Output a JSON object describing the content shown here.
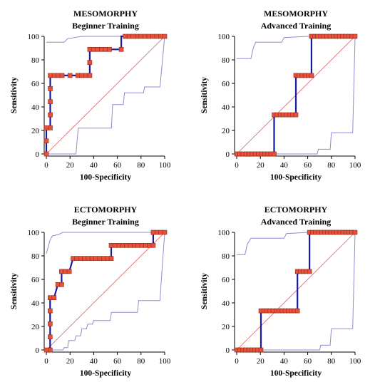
{
  "chart_data": [
    {
      "type": "line",
      "title": "MESOMORPHY",
      "subtitle": "Beginner Training",
      "xlabel": "100-Specificity",
      "ylabel": "Sensitivity",
      "xlim": [
        0,
        100
      ],
      "ylim": [
        0,
        100
      ],
      "xticks": [
        0,
        20,
        40,
        60,
        80,
        100
      ],
      "yticks": [
        0,
        20,
        40,
        60,
        80,
        100
      ],
      "grid": false,
      "colors": {
        "roc": "#1a1a9e",
        "marker": "#e8503a",
        "ci": "#8c8cd0",
        "diagonal": "#e05a5a"
      },
      "roc": [
        [
          0,
          0
        ],
        [
          0,
          11.1
        ],
        [
          0,
          22.2
        ],
        [
          3.3,
          22.2
        ],
        [
          3.3,
          33.3
        ],
        [
          3.3,
          44.4
        ],
        [
          3.3,
          55.6
        ],
        [
          3.3,
          66.7
        ],
        [
          6.7,
          66.7
        ],
        [
          10,
          66.7
        ],
        [
          13.3,
          66.7
        ],
        [
          20,
          66.7
        ],
        [
          26.7,
          66.7
        ],
        [
          30,
          66.7
        ],
        [
          33.3,
          66.7
        ],
        [
          36.7,
          66.7
        ],
        [
          36.7,
          77.8
        ],
        [
          36.7,
          88.9
        ],
        [
          40,
          88.9
        ],
        [
          43.3,
          88.9
        ],
        [
          46.7,
          88.9
        ],
        [
          50,
          88.9
        ],
        [
          53.3,
          88.9
        ],
        [
          63.3,
          88.9
        ],
        [
          63.3,
          100
        ],
        [
          66.7,
          100
        ],
        [
          70,
          100
        ],
        [
          73.3,
          100
        ],
        [
          76.7,
          100
        ],
        [
          80,
          100
        ],
        [
          83.3,
          100
        ],
        [
          86.7,
          100
        ],
        [
          90,
          100
        ],
        [
          93.3,
          100
        ],
        [
          96.7,
          100
        ],
        [
          100,
          100
        ]
      ],
      "markers": [
        [
          0,
          0
        ],
        [
          0,
          11.1
        ],
        [
          0,
          22.2
        ],
        [
          3.3,
          22.2
        ],
        [
          3.3,
          33.3
        ],
        [
          3.3,
          44.4
        ],
        [
          3.3,
          55.6
        ],
        [
          3.3,
          66.7
        ],
        [
          6.7,
          66.7
        ],
        [
          10,
          66.7
        ],
        [
          13.3,
          66.7
        ],
        [
          20,
          66.7
        ],
        [
          26.7,
          66.7
        ],
        [
          30,
          66.7
        ],
        [
          33.3,
          66.7
        ],
        [
          36.7,
          66.7
        ],
        [
          36.7,
          77.8
        ],
        [
          36.7,
          88.9
        ],
        [
          40,
          88.9
        ],
        [
          43.3,
          88.9
        ],
        [
          46.7,
          88.9
        ],
        [
          50,
          88.9
        ],
        [
          53.3,
          88.9
        ],
        [
          63.3,
          88.9
        ],
        [
          66.7,
          100
        ],
        [
          70,
          100
        ],
        [
          73.3,
          100
        ],
        [
          76.7,
          100
        ],
        [
          80,
          100
        ],
        [
          83.3,
          100
        ],
        [
          86.7,
          100
        ],
        [
          90,
          100
        ],
        [
          93.3,
          100
        ],
        [
          96.7,
          100
        ],
        [
          100,
          100
        ]
      ],
      "ci_upper": [
        [
          0,
          95
        ],
        [
          15,
          95
        ],
        [
          18,
          98
        ],
        [
          30,
          100
        ],
        [
          100,
          100
        ]
      ],
      "ci_lower": [
        [
          0,
          0
        ],
        [
          25,
          0
        ],
        [
          27,
          22
        ],
        [
          55,
          22
        ],
        [
          56,
          42
        ],
        [
          65,
          42
        ],
        [
          66,
          52
        ],
        [
          82,
          52
        ],
        [
          83,
          57
        ],
        [
          96,
          57
        ],
        [
          100,
          100
        ]
      ]
    },
    {
      "type": "line",
      "title": "MESOMORPHY",
      "subtitle": "Advanced Training",
      "xlabel": "100-Specificity",
      "ylabel": "Sensitivity",
      "xlim": [
        0,
        100
      ],
      "ylim": [
        0,
        100
      ],
      "xticks": [
        0,
        20,
        40,
        60,
        80,
        100
      ],
      "yticks": [
        0,
        20,
        40,
        60,
        80,
        100
      ],
      "grid": false,
      "colors": {
        "roc": "#1a1a9e",
        "marker": "#e8503a",
        "ci": "#8c8cd0",
        "diagonal": "#e05a5a"
      },
      "roc": [
        [
          0,
          0
        ],
        [
          31.6,
          0
        ],
        [
          31.6,
          33.3
        ],
        [
          50,
          33.3
        ],
        [
          50,
          66.7
        ],
        [
          63.2,
          66.7
        ],
        [
          63.2,
          100
        ],
        [
          100,
          100
        ]
      ],
      "markers": [
        [
          0,
          0
        ],
        [
          2.6,
          0
        ],
        [
          5.3,
          0
        ],
        [
          7.9,
          0
        ],
        [
          10.5,
          0
        ],
        [
          13.2,
          0
        ],
        [
          15.8,
          0
        ],
        [
          18.4,
          0
        ],
        [
          21.1,
          0
        ],
        [
          23.7,
          0
        ],
        [
          26.3,
          0
        ],
        [
          28.9,
          0
        ],
        [
          31.6,
          0
        ],
        [
          31.6,
          33.3
        ],
        [
          34.2,
          33.3
        ],
        [
          36.8,
          33.3
        ],
        [
          39.5,
          33.3
        ],
        [
          42.1,
          33.3
        ],
        [
          44.7,
          33.3
        ],
        [
          47.4,
          33.3
        ],
        [
          50,
          33.3
        ],
        [
          50,
          66.7
        ],
        [
          52.6,
          66.7
        ],
        [
          55.3,
          66.7
        ],
        [
          57.9,
          66.7
        ],
        [
          60.5,
          66.7
        ],
        [
          63.2,
          66.7
        ],
        [
          63.2,
          100
        ],
        [
          65.8,
          100
        ],
        [
          68.4,
          100
        ],
        [
          71.1,
          100
        ],
        [
          73.7,
          100
        ],
        [
          76.3,
          100
        ],
        [
          78.9,
          100
        ],
        [
          81.6,
          100
        ],
        [
          84.2,
          100
        ],
        [
          86.8,
          100
        ],
        [
          89.5,
          100
        ],
        [
          92.1,
          100
        ],
        [
          94.7,
          100
        ],
        [
          97.4,
          100
        ],
        [
          100,
          100
        ]
      ],
      "ci_upper": [
        [
          0,
          81
        ],
        [
          12,
          81
        ],
        [
          14,
          90
        ],
        [
          16,
          95
        ],
        [
          38,
          95
        ],
        [
          40,
          99
        ],
        [
          60,
          100
        ],
        [
          100,
          100
        ]
      ],
      "ci_lower": [
        [
          0,
          0
        ],
        [
          68,
          0
        ],
        [
          69,
          4
        ],
        [
          79,
          4
        ],
        [
          80,
          18
        ],
        [
          98,
          18
        ],
        [
          100,
          100
        ]
      ]
    },
    {
      "type": "line",
      "title": "ECTOMORPHY",
      "subtitle": "Beginner Training",
      "xlabel": "100-Specificity",
      "ylabel": "Sensitivity",
      "xlim": [
        0,
        100
      ],
      "ylim": [
        0,
        100
      ],
      "xticks": [
        0,
        20,
        40,
        60,
        80,
        100
      ],
      "yticks": [
        0,
        20,
        40,
        60,
        80,
        100
      ],
      "grid": false,
      "colors": {
        "roc": "#1a1a9e",
        "marker": "#e8503a",
        "ci": "#8c8cd0",
        "diagonal": "#e05a5a"
      },
      "roc": [
        [
          0,
          0
        ],
        [
          3.2,
          0
        ],
        [
          3.2,
          11.1
        ],
        [
          3.2,
          22.2
        ],
        [
          3.2,
          33.3
        ],
        [
          3.2,
          44.4
        ],
        [
          6.5,
          44.4
        ],
        [
          9.7,
          55.6
        ],
        [
          12.9,
          55.6
        ],
        [
          12.9,
          66.7
        ],
        [
          16.1,
          66.7
        ],
        [
          19.4,
          66.7
        ],
        [
          22.6,
          77.8
        ],
        [
          25.8,
          77.8
        ],
        [
          29,
          77.8
        ],
        [
          32.3,
          77.8
        ],
        [
          35.5,
          77.8
        ],
        [
          38.7,
          77.8
        ],
        [
          41.9,
          77.8
        ],
        [
          45.2,
          77.8
        ],
        [
          48.4,
          77.8
        ],
        [
          51.6,
          77.8
        ],
        [
          54.8,
          77.8
        ],
        [
          54.8,
          88.9
        ],
        [
          58.1,
          88.9
        ],
        [
          61.3,
          88.9
        ],
        [
          64.5,
          88.9
        ],
        [
          67.7,
          88.9
        ],
        [
          71,
          88.9
        ],
        [
          74.2,
          88.9
        ],
        [
          77.4,
          88.9
        ],
        [
          80.6,
          88.9
        ],
        [
          83.9,
          88.9
        ],
        [
          87.1,
          88.9
        ],
        [
          90.3,
          88.9
        ],
        [
          90.3,
          100
        ],
        [
          93.5,
          100
        ],
        [
          96.8,
          100
        ],
        [
          100,
          100
        ]
      ],
      "markers": [
        [
          0,
          0
        ],
        [
          3.2,
          0
        ],
        [
          3.2,
          11.1
        ],
        [
          3.2,
          22.2
        ],
        [
          3.2,
          33.3
        ],
        [
          3.2,
          44.4
        ],
        [
          6.5,
          44.4
        ],
        [
          9.7,
          55.6
        ],
        [
          12.9,
          55.6
        ],
        [
          12.9,
          66.7
        ],
        [
          16.1,
          66.7
        ],
        [
          19.4,
          66.7
        ],
        [
          22.6,
          77.8
        ],
        [
          25.8,
          77.8
        ],
        [
          29,
          77.8
        ],
        [
          32.3,
          77.8
        ],
        [
          35.5,
          77.8
        ],
        [
          38.7,
          77.8
        ],
        [
          41.9,
          77.8
        ],
        [
          45.2,
          77.8
        ],
        [
          48.4,
          77.8
        ],
        [
          51.6,
          77.8
        ],
        [
          54.8,
          77.8
        ],
        [
          54.8,
          88.9
        ],
        [
          58.1,
          88.9
        ],
        [
          61.3,
          88.9
        ],
        [
          64.5,
          88.9
        ],
        [
          67.7,
          88.9
        ],
        [
          71,
          88.9
        ],
        [
          74.2,
          88.9
        ],
        [
          77.4,
          88.9
        ],
        [
          80.6,
          88.9
        ],
        [
          83.9,
          88.9
        ],
        [
          87.1,
          88.9
        ],
        [
          90.3,
          88.9
        ],
        [
          90.3,
          100
        ],
        [
          93.5,
          100
        ],
        [
          96.8,
          100
        ],
        [
          100,
          100
        ]
      ],
      "ci_upper": [
        [
          0,
          82
        ],
        [
          3,
          93
        ],
        [
          5,
          97
        ],
        [
          10,
          98
        ],
        [
          14,
          100
        ],
        [
          100,
          100
        ]
      ],
      "ci_lower": [
        [
          0,
          0
        ],
        [
          14,
          0
        ],
        [
          15,
          2
        ],
        [
          18,
          2
        ],
        [
          19,
          8
        ],
        [
          24,
          8
        ],
        [
          25,
          12
        ],
        [
          29,
          12
        ],
        [
          30,
          18
        ],
        [
          34,
          18
        ],
        [
          35,
          22
        ],
        [
          39,
          22
        ],
        [
          40,
          25
        ],
        [
          54,
          25
        ],
        [
          55,
          32
        ],
        [
          77,
          32
        ],
        [
          78,
          42
        ],
        [
          96,
          42
        ],
        [
          97,
          57
        ],
        [
          100,
          100
        ]
      ]
    },
    {
      "type": "line",
      "title": "ECTOMORPHY",
      "subtitle": "Advanced Training",
      "xlabel": "100-Specificity",
      "ylabel": "Sensitivity",
      "xlim": [
        0,
        100
      ],
      "ylim": [
        0,
        100
      ],
      "xticks": [
        0,
        20,
        40,
        60,
        80,
        100
      ],
      "yticks": [
        0,
        20,
        40,
        60,
        80,
        100
      ],
      "grid": false,
      "colors": {
        "roc": "#1a1a9e",
        "marker": "#e8503a",
        "ci": "#8c8cd0",
        "diagonal": "#e05a5a"
      },
      "roc": [
        [
          0,
          0
        ],
        [
          20.5,
          0
        ],
        [
          20.5,
          33.3
        ],
        [
          51.3,
          33.3
        ],
        [
          51.3,
          66.7
        ],
        [
          61.5,
          66.7
        ],
        [
          61.5,
          100
        ],
        [
          100,
          100
        ]
      ],
      "markers": [
        [
          0,
          0
        ],
        [
          2.6,
          0
        ],
        [
          5.1,
          0
        ],
        [
          7.7,
          0
        ],
        [
          10.3,
          0
        ],
        [
          12.8,
          0
        ],
        [
          15.4,
          0
        ],
        [
          17.9,
          0
        ],
        [
          20.5,
          0
        ],
        [
          20.5,
          33.3
        ],
        [
          23.1,
          33.3
        ],
        [
          25.6,
          33.3
        ],
        [
          28.2,
          33.3
        ],
        [
          30.8,
          33.3
        ],
        [
          33.3,
          33.3
        ],
        [
          35.9,
          33.3
        ],
        [
          38.5,
          33.3
        ],
        [
          41,
          33.3
        ],
        [
          43.6,
          33.3
        ],
        [
          46.2,
          33.3
        ],
        [
          48.7,
          33.3
        ],
        [
          51.3,
          33.3
        ],
        [
          51.3,
          66.7
        ],
        [
          53.8,
          66.7
        ],
        [
          56.4,
          66.7
        ],
        [
          59,
          66.7
        ],
        [
          61.5,
          66.7
        ],
        [
          61.5,
          100
        ],
        [
          64.1,
          100
        ],
        [
          66.7,
          100
        ],
        [
          69.2,
          100
        ],
        [
          71.8,
          100
        ],
        [
          74.4,
          100
        ],
        [
          76.9,
          100
        ],
        [
          79.5,
          100
        ],
        [
          82.1,
          100
        ],
        [
          84.6,
          100
        ],
        [
          87.2,
          100
        ],
        [
          89.7,
          100
        ],
        [
          92.3,
          100
        ],
        [
          94.9,
          100
        ],
        [
          97.4,
          100
        ],
        [
          100,
          100
        ]
      ],
      "ci_upper": [
        [
          0,
          81
        ],
        [
          7,
          81
        ],
        [
          9,
          90
        ],
        [
          12,
          95
        ],
        [
          40,
          95
        ],
        [
          42,
          99
        ],
        [
          60,
          100
        ],
        [
          100,
          100
        ]
      ],
      "ci_lower": [
        [
          0,
          0
        ],
        [
          70,
          0
        ],
        [
          71,
          4
        ],
        [
          79,
          4
        ],
        [
          80,
          18
        ],
        [
          98,
          18
        ],
        [
          100,
          100
        ]
      ]
    }
  ]
}
